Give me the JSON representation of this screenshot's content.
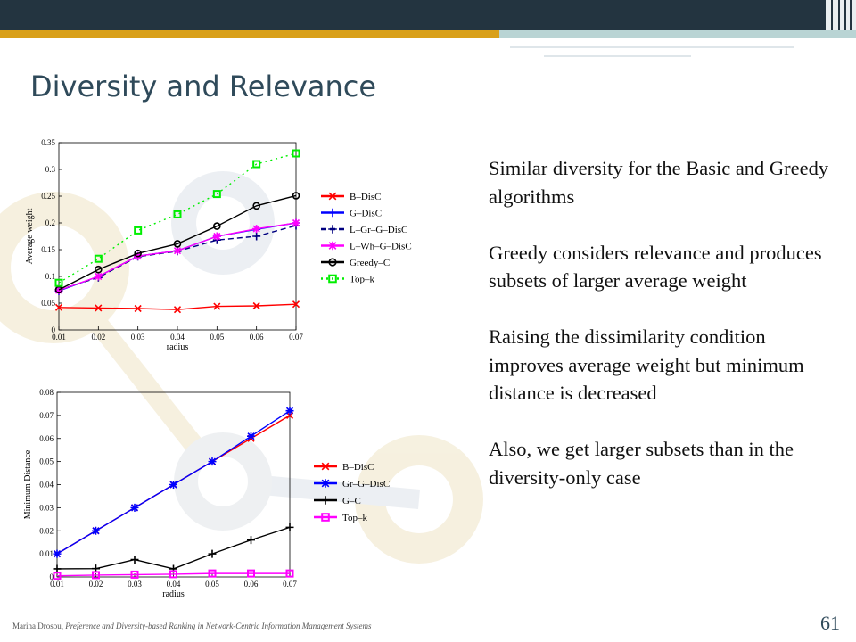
{
  "slide": {
    "title": "Diversity and Relevance",
    "paragraphs": [
      "Similar diversity for the Basic and Greedy algorithms",
      "Greedy considers relevance and produces subsets of larger average weight",
      "Raising the dissimilarity condition improves average weight but minimum distance is decreased",
      "Also, we get larger subsets than in the diversity-only case"
    ],
    "footer_author": "Marina Drosou,",
    "footer_title": "Preference and Diversity-based Ranking in Network-Centric Information Management Systems",
    "slide_number": "61"
  },
  "chart_data": [
    {
      "type": "line",
      "xlabel": "radius",
      "ylabel": "Average weight",
      "x": [
        0.01,
        0.02,
        0.03,
        0.04,
        0.05,
        0.06,
        0.07
      ],
      "xlim": [
        0.01,
        0.07
      ],
      "ylim": [
        0,
        0.35
      ],
      "xticks": [
        "0.01",
        "0.02",
        "0.03",
        "0.04",
        "0.05",
        "0.06",
        "0.07"
      ],
      "yticks": [
        "0",
        "0.05",
        "0.1",
        "0.15",
        "0.2",
        "0.25",
        "0.3",
        "0.35"
      ],
      "legend_position": "right",
      "series": [
        {
          "name": "B–DisC",
          "color": "#ff0000",
          "marker": "x",
          "dash": "",
          "values": [
            0.042,
            0.041,
            0.04,
            0.038,
            0.044,
            0.045,
            0.048
          ]
        },
        {
          "name": "G–DisC",
          "color": "#0000ff",
          "marker": "plus",
          "dash": "",
          "values": [
            0.073,
            0.1,
            0.138,
            0.148,
            0.175,
            0.188,
            0.2
          ]
        },
        {
          "name": "L–Gr–G–DisC",
          "color": "#000080",
          "marker": "plus",
          "dash": "6,4",
          "values": [
            0.075,
            0.098,
            0.137,
            0.147,
            0.168,
            0.175,
            0.195
          ]
        },
        {
          "name": "L–Wh–G–DisC",
          "color": "#ff00ff",
          "marker": "star",
          "dash": "",
          "values": [
            0.074,
            0.1,
            0.138,
            0.148,
            0.175,
            0.189,
            0.2
          ]
        },
        {
          "name": "Greedy–C",
          "color": "#000000",
          "marker": "circle",
          "dash": "",
          "values": [
            0.075,
            0.113,
            0.143,
            0.161,
            0.194,
            0.232,
            0.251
          ]
        },
        {
          "name": "Top–k",
          "color": "#00ee00",
          "marker": "square",
          "dash": "2,4",
          "values": [
            0.088,
            0.133,
            0.186,
            0.216,
            0.254,
            0.31,
            0.33
          ]
        }
      ]
    },
    {
      "type": "line",
      "xlabel": "radius",
      "ylabel": "Minimum Distance",
      "x": [
        0.01,
        0.02,
        0.03,
        0.04,
        0.05,
        0.06,
        0.07
      ],
      "xlim": [
        0.01,
        0.07
      ],
      "ylim": [
        0,
        0.08
      ],
      "xticks": [
        "0.01",
        "0.02",
        "0.03",
        "0.04",
        "0.05",
        "0.06",
        "0.07"
      ],
      "yticks": [
        "0",
        "0.01",
        "0.02",
        "0.03",
        "0.04",
        "0.05",
        "0.06",
        "0.07",
        "0.08"
      ],
      "legend_position": "right",
      "series": [
        {
          "name": "B–DisC",
          "color": "#ff0000",
          "marker": "x",
          "dash": "",
          "values": [
            0.01,
            0.02,
            0.03,
            0.04,
            0.05,
            0.06,
            0.07
          ]
        },
        {
          "name": "Gr–G–DisC",
          "color": "#0000ff",
          "marker": "star",
          "dash": "",
          "values": [
            0.01,
            0.02,
            0.03,
            0.04,
            0.05,
            0.061,
            0.072
          ]
        },
        {
          "name": "G–C",
          "color": "#000000",
          "marker": "plus",
          "dash": "",
          "values": [
            0.0035,
            0.0036,
            0.0075,
            0.0035,
            0.01,
            0.016,
            0.0215
          ]
        },
        {
          "name": "Top–k",
          "color": "#ff00ff",
          "marker": "square",
          "dash": "",
          "values": [
            0.0005,
            0.0008,
            0.001,
            0.0012,
            0.0015,
            0.0015,
            0.0015
          ]
        }
      ]
    }
  ]
}
